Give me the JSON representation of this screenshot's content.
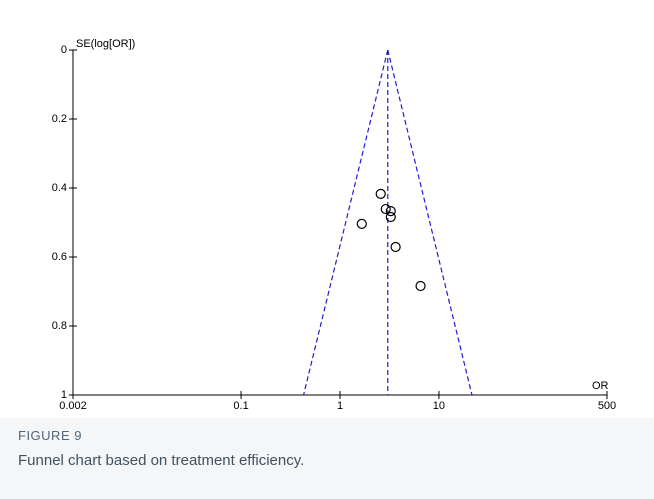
{
  "chart_data": {
    "type": "funnel",
    "x_label": "OR",
    "y_label": "SE(log[OR])",
    "xlim": [
      0.002,
      500
    ],
    "xticks": [
      0.002,
      0.1,
      1,
      10,
      500
    ],
    "log_x": true,
    "ylim": [
      0,
      1
    ],
    "yticks": [
      0,
      0.2,
      0.4,
      0.6,
      0.8,
      1
    ],
    "y_inverted": true,
    "pooled_or": 3.04,
    "funnel_color": "#1f1fcc",
    "series": [
      {
        "x": [
          2.58,
          2.9,
          3.26,
          3.26,
          1.66,
          3.65,
          6.52
        ],
        "values": [
          0.417,
          0.461,
          0.467,
          0.484,
          0.504,
          0.571,
          0.684
        ]
      }
    ]
  },
  "caption": {
    "label": "FIGURE 9",
    "text": "Funnel chart based on treatment efficiency."
  }
}
